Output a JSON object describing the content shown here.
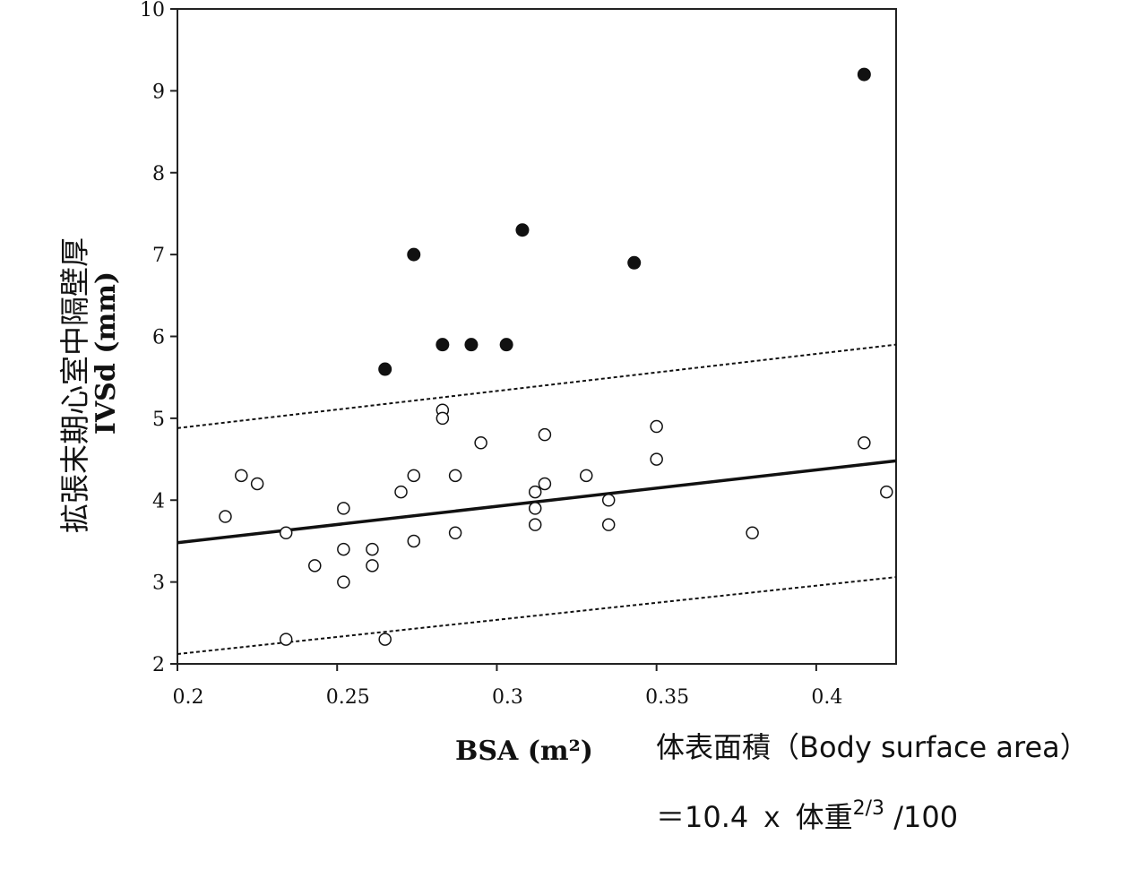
{
  "chart_data": {
    "type": "scatter",
    "ylabel_en": "IVSd (mm)",
    "ylabel_jp": "拡張末期心室中隔壁厚",
    "xlabel": "BSA (m²)",
    "xlim": [
      0.2,
      0.425
    ],
    "ylim": [
      2,
      10
    ],
    "x_ticks": [
      "0.2",
      "0.25",
      "0.3",
      "0.35",
      "0.4"
    ],
    "y_ticks": [
      "2",
      "3",
      "4",
      "5",
      "6",
      "7",
      "8",
      "9",
      "10"
    ],
    "grid": false,
    "series": [
      {
        "marker": "open-circle",
        "points": [
          [
            0.215,
            3.8
          ],
          [
            0.22,
            4.3
          ],
          [
            0.225,
            4.2
          ],
          [
            0.234,
            3.6
          ],
          [
            0.234,
            2.3
          ],
          [
            0.243,
            3.2
          ],
          [
            0.252,
            3.9
          ],
          [
            0.252,
            3.4
          ],
          [
            0.252,
            3.0
          ],
          [
            0.261,
            3.4
          ],
          [
            0.261,
            3.2
          ],
          [
            0.265,
            2.3
          ],
          [
            0.27,
            4.1
          ],
          [
            0.274,
            4.3
          ],
          [
            0.274,
            3.5
          ],
          [
            0.283,
            5.1
          ],
          [
            0.283,
            5.0
          ],
          [
            0.287,
            4.3
          ],
          [
            0.287,
            3.6
          ],
          [
            0.295,
            4.7
          ],
          [
            0.312,
            4.1
          ],
          [
            0.312,
            3.9
          ],
          [
            0.312,
            3.7
          ],
          [
            0.315,
            4.8
          ],
          [
            0.315,
            4.2
          ],
          [
            0.328,
            4.3
          ],
          [
            0.335,
            4.0
          ],
          [
            0.335,
            3.7
          ],
          [
            0.35,
            4.9
          ],
          [
            0.35,
            4.5
          ],
          [
            0.38,
            3.6
          ],
          [
            0.415,
            4.7
          ],
          [
            0.422,
            4.1
          ]
        ]
      },
      {
        "marker": "filled-circle",
        "points": [
          [
            0.265,
            5.6
          ],
          [
            0.274,
            7.0
          ],
          [
            0.283,
            5.9
          ],
          [
            0.292,
            5.9
          ],
          [
            0.303,
            5.9
          ],
          [
            0.308,
            7.3
          ],
          [
            0.343,
            6.9
          ],
          [
            0.415,
            9.2
          ]
        ]
      }
    ],
    "lines": [
      {
        "style": "solid",
        "from": [
          0.2,
          3.48
        ],
        "to": [
          0.425,
          4.48
        ]
      },
      {
        "style": "dotted",
        "from": [
          0.2,
          4.88
        ],
        "to": [
          0.425,
          5.9
        ]
      },
      {
        "style": "dotted",
        "from": [
          0.2,
          2.12
        ],
        "to": [
          0.425,
          3.06
        ]
      }
    ]
  },
  "note": {
    "line1": "体表面積（Body surface area）",
    "line2_prefix": "＝10.4 ｘ 体重",
    "line2_exponent": "2/3",
    "line2_suffix": " /100"
  }
}
